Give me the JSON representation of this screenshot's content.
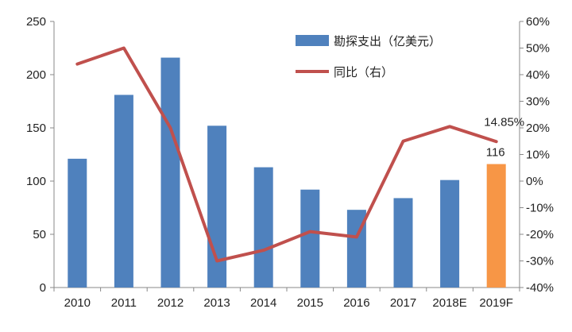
{
  "chart_data": {
    "type": "bar+line",
    "categories": [
      "2010",
      "2011",
      "2012",
      "2013",
      "2014",
      "2015",
      "2016",
      "2017",
      "2018E",
      "2019F"
    ],
    "series": [
      {
        "name": "勘探支出（亿美元）",
        "type": "bar",
        "axis": "left",
        "values": [
          121,
          181,
          216,
          152,
          113,
          92,
          73,
          84,
          101,
          116
        ],
        "colors": [
          "#4F81BD",
          "#4F81BD",
          "#4F81BD",
          "#4F81BD",
          "#4F81BD",
          "#4F81BD",
          "#4F81BD",
          "#4F81BD",
          "#4F81BD",
          "#F79646"
        ]
      },
      {
        "name": "同比（右）",
        "type": "line",
        "axis": "right",
        "values": [
          44,
          50,
          20,
          -30,
          -26,
          -19,
          -21,
          15,
          20.5,
          14.85
        ],
        "color": "#C0504D"
      }
    ],
    "y_left": {
      "ylim": [
        0,
        250
      ],
      "ticks": [
        "0",
        "50",
        "100",
        "150",
        "200",
        "250"
      ]
    },
    "y_right": {
      "ylim": [
        -40,
        60
      ],
      "ticks": [
        "-40%",
        "-30%",
        "-20%",
        "-10%",
        "0%",
        "10%",
        "20%",
        "30%",
        "40%",
        "50%",
        "60%"
      ]
    },
    "annotations": [
      {
        "text": "14.85%",
        "category": "2019F",
        "series": "同比（右）"
      },
      {
        "text": "116",
        "category": "2019F",
        "series": "勘探支出（亿美元）"
      }
    ],
    "legend": {
      "position": "top-right",
      "items": [
        {
          "label": "勘探支出（亿美元）",
          "color": "#4F81BD",
          "shape": "rect"
        },
        {
          "label": "同比（右）",
          "color": "#C0504D",
          "shape": "line"
        }
      ]
    },
    "grid": false
  }
}
